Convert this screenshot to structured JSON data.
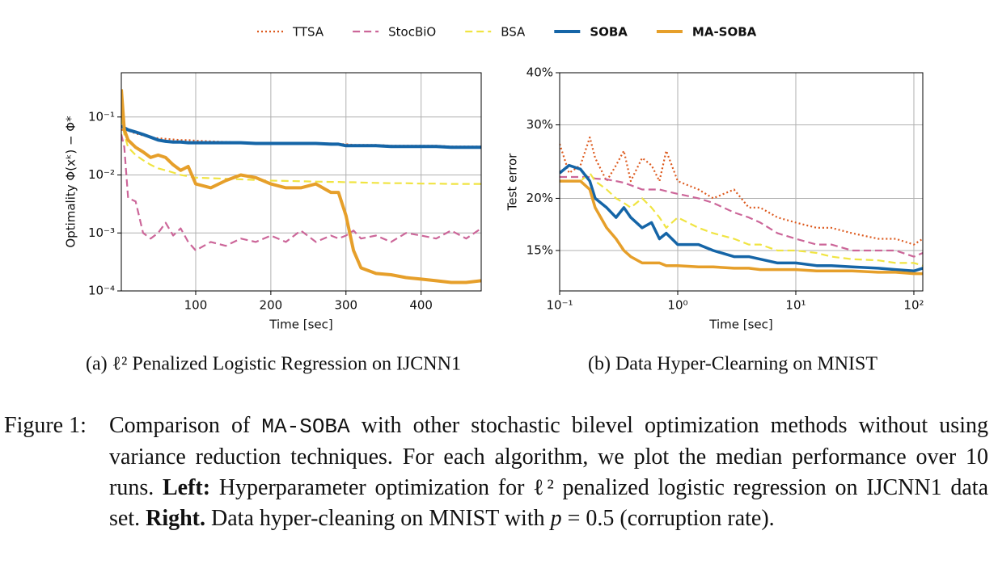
{
  "chart_data": [
    {
      "type": "line",
      "xlabel": "Time [sec]",
      "ylabel": "Optimality  Φ(xᵏ) − Φ*",
      "xscale": "linear",
      "yscale": "log",
      "grid": true,
      "xlim": [
        1,
        480
      ],
      "xticks": [
        100,
        200,
        300,
        400
      ],
      "ylim": [
        0.0001,
        0.58
      ],
      "yticks": [
        {
          "value": 0.0001,
          "label": "10⁻⁴"
        },
        {
          "value": 0.001,
          "label": "10⁻³"
        },
        {
          "value": 0.01,
          "label": "10⁻²"
        },
        {
          "value": 0.1,
          "label": "10⁻¹"
        }
      ],
      "x": [
        1,
        5,
        10,
        20,
        30,
        40,
        50,
        60,
        70,
        80,
        90,
        100,
        120,
        140,
        160,
        180,
        200,
        220,
        240,
        260,
        280,
        290,
        300,
        310,
        320,
        340,
        360,
        380,
        400,
        420,
        440,
        460,
        480
      ],
      "series": [
        {
          "name": "TTSA",
          "color": "#dd5a1e",
          "style": "dotted",
          "width": 2.2,
          "values": [
            0.06,
            0.06,
            0.058,
            0.052,
            0.048,
            0.045,
            0.043,
            0.042,
            0.041,
            0.04,
            0.04,
            0.039,
            0.038,
            0.037,
            0.036,
            0.036,
            0.036,
            0.035,
            0.035,
            0.035,
            0.035,
            0.034,
            0.034,
            0.033,
            0.033,
            0.033,
            0.032,
            0.032,
            0.032,
            0.032,
            0.031,
            0.031,
            0.031
          ]
        },
        {
          "name": "StocBiO",
          "color": "#cc6699",
          "style": "dashed",
          "width": 2.2,
          "values": [
            0.05,
            0.03,
            0.004,
            0.0035,
            0.001,
            0.0008,
            0.001,
            0.0015,
            0.0009,
            0.0012,
            0.0007,
            0.0005,
            0.0007,
            0.0006,
            0.0008,
            0.0007,
            0.0009,
            0.0007,
            0.0011,
            0.0007,
            0.0009,
            0.0008,
            0.0009,
            0.0011,
            0.0008,
            0.0009,
            0.0007,
            0.001,
            0.0009,
            0.0008,
            0.0011,
            0.0008,
            0.0012
          ]
        },
        {
          "name": "BSA",
          "color": "#f0e442",
          "style": "dashed",
          "width": 2.2,
          "values": [
            0.1,
            0.05,
            0.03,
            0.022,
            0.018,
            0.015,
            0.013,
            0.012,
            0.011,
            0.01,
            0.0095,
            0.009,
            0.0088,
            0.0086,
            0.0084,
            0.0082,
            0.008,
            0.0079,
            0.0078,
            0.0077,
            0.0076,
            0.0076,
            0.0075,
            0.0075,
            0.0074,
            0.0073,
            0.0072,
            0.0072,
            0.0071,
            0.0071,
            0.007,
            0.007,
            0.007
          ]
        },
        {
          "name": "SOBA",
          "color": "#1565a7",
          "style": "solid",
          "width": 4,
          "values": [
            0.07,
            0.065,
            0.06,
            0.055,
            0.05,
            0.045,
            0.04,
            0.038,
            0.037,
            0.037,
            0.036,
            0.036,
            0.036,
            0.036,
            0.036,
            0.035,
            0.035,
            0.035,
            0.035,
            0.035,
            0.034,
            0.034,
            0.032,
            0.032,
            0.032,
            0.032,
            0.031,
            0.031,
            0.031,
            0.031,
            0.03,
            0.03,
            0.03
          ]
        },
        {
          "name": "MA-SOBA",
          "color": "#e69f2a",
          "style": "solid",
          "width": 4,
          "values": [
            0.3,
            0.06,
            0.04,
            0.03,
            0.025,
            0.02,
            0.022,
            0.02,
            0.015,
            0.012,
            0.014,
            0.007,
            0.006,
            0.008,
            0.01,
            0.009,
            0.007,
            0.006,
            0.006,
            0.007,
            0.005,
            0.005,
            0.002,
            0.0005,
            0.00025,
            0.0002,
            0.00019,
            0.00017,
            0.00016,
            0.00015,
            0.00014,
            0.00014,
            0.00015
          ]
        }
      ]
    },
    {
      "type": "line",
      "xlabel": "Time [sec]",
      "ylabel": "Test error",
      "xscale": "log",
      "yscale": "log",
      "grid": true,
      "xlim": [
        0.1,
        119
      ],
      "xticks": [
        {
          "value": 0.1,
          "label": "10⁻¹"
        },
        {
          "value": 1,
          "label": "10⁰"
        },
        {
          "value": 10,
          "label": "10¹"
        },
        {
          "value": 100,
          "label": "10²"
        }
      ],
      "ylim": [
        12,
        40
      ],
      "yticks": [
        {
          "value": 15,
          "label": "15%"
        },
        {
          "value": 20,
          "label": "20%"
        },
        {
          "value": 30,
          "label": "30%"
        },
        {
          "value": 40,
          "label": "40%"
        }
      ],
      "x": [
        0.1,
        0.12,
        0.15,
        0.18,
        0.2,
        0.25,
        0.3,
        0.35,
        0.4,
        0.5,
        0.6,
        0.7,
        0.8,
        1,
        1.5,
        2,
        3,
        4,
        5,
        7,
        10,
        15,
        20,
        30,
        50,
        70,
        100,
        119
      ],
      "series": [
        {
          "name": "TTSA",
          "color": "#dd5a1e",
          "style": "dotted",
          "width": 2.2,
          "values": [
            27,
            23,
            24,
            28,
            25,
            22,
            24,
            26,
            22,
            25,
            24,
            22,
            26,
            22,
            21,
            20,
            21,
            19,
            19,
            18,
            17.5,
            17,
            17,
            16.5,
            16,
            16,
            15.5,
            16
          ]
        },
        {
          "name": "StocBiO",
          "color": "#cc6699",
          "style": "dashed",
          "width": 2.2,
          "values": [
            22.5,
            22.5,
            22.5,
            22.5,
            22.3,
            22.2,
            22,
            21.8,
            21.5,
            21,
            21,
            21,
            20.8,
            20.5,
            20,
            19.5,
            18.5,
            18,
            17.5,
            16.5,
            16,
            15.5,
            15.5,
            15,
            15,
            15,
            14.5,
            14.8
          ]
        },
        {
          "name": "BSA",
          "color": "#f0e442",
          "style": "dashed",
          "width": 2.2,
          "values": [
            22,
            22,
            22,
            23,
            22,
            21,
            20,
            19.5,
            19,
            20,
            19,
            18,
            17,
            18,
            17,
            16.5,
            16,
            15.5,
            15.5,
            15,
            15,
            14.8,
            14.5,
            14.3,
            14.2,
            14,
            14,
            13.8
          ]
        },
        {
          "name": "SOBA",
          "color": "#1565a7",
          "style": "solid",
          "width": 3.5,
          "values": [
            23,
            24,
            23.5,
            22,
            20,
            19,
            18,
            19,
            18,
            17,
            17.5,
            16,
            16.5,
            15.5,
            15.5,
            15,
            14.5,
            14.5,
            14.3,
            14,
            14,
            13.8,
            13.8,
            13.7,
            13.6,
            13.5,
            13.4,
            13.6
          ]
        },
        {
          "name": "MA-SOBA",
          "color": "#e69f2a",
          "style": "solid",
          "width": 3.5,
          "values": [
            22,
            22,
            22,
            21,
            19,
            17,
            16,
            15,
            14.5,
            14,
            14,
            14,
            13.8,
            13.8,
            13.7,
            13.7,
            13.6,
            13.6,
            13.5,
            13.5,
            13.5,
            13.4,
            13.4,
            13.4,
            13.3,
            13.3,
            13.2,
            13.2
          ]
        }
      ]
    }
  ],
  "subcaptions": [
    "(a) ℓ² Penalized Logistic Regression on IJCNN1",
    "(b) Data Hyper-Clearning on MNIST"
  ],
  "caption": {
    "label": "Figure 1:",
    "parts": [
      "Comparison of ",
      "MA-SOBA",
      " with other stochastic bilevel optimization methods without using variance reduction techniques.  For each algorithm, we plot the median performance over 10 runs. ",
      "Left:",
      " Hyperparameter optimization for ℓ² penalized logistic regression on IJCNN1 data set. ",
      "Right.",
      " Data hyper-cleaning on MNIST with ",
      "p",
      " = 0.5 (corruption rate)."
    ]
  }
}
